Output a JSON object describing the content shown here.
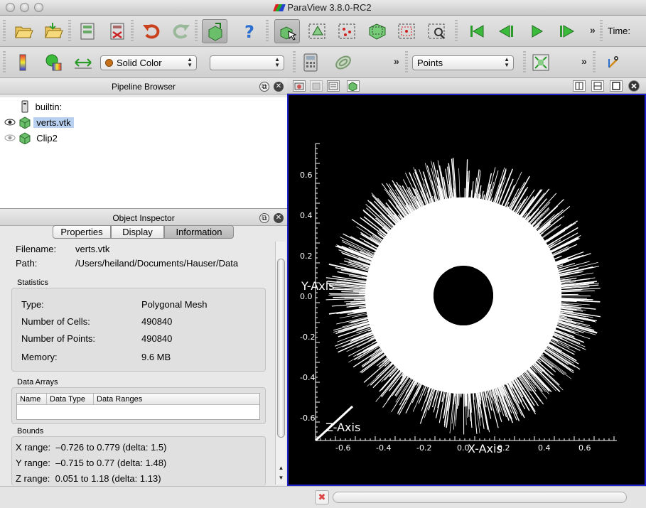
{
  "window": {
    "title": "ParaView 3.8.0-RC2"
  },
  "toolbar1": {
    "icons": [
      "open-icon",
      "open-recent-icon",
      "connect-icon",
      "disconnect-icon",
      "undo-icon",
      "redo-icon",
      "reset-session-icon",
      "help-icon",
      "interact-icon",
      "select-cells-icon",
      "select-points-icon",
      "select-frustum-cells-icon",
      "select-frustum-points-icon",
      "select-block-icon",
      "first-frame-icon",
      "previous-frame-icon",
      "play-icon",
      "next-frame-icon",
      "last-frame-icon"
    ],
    "time_label": "Time:",
    "overflow": "»"
  },
  "toolbar2": {
    "color_by": "Solid Color",
    "component": "",
    "representation": "Points",
    "overflow": "»"
  },
  "pipeline_browser": {
    "title": "Pipeline Browser",
    "items": [
      {
        "label": "builtin:",
        "icon": "server-icon"
      },
      {
        "label": "verts.vtk",
        "icon": "dataset-icon",
        "visible": true,
        "selected": true
      },
      {
        "label": "Clip2",
        "icon": "filter-icon",
        "visible": false
      }
    ]
  },
  "object_inspector": {
    "title": "Object Inspector",
    "tabs": [
      "Properties",
      "Display",
      "Information"
    ],
    "active_tab": "Information",
    "file": {
      "filename_label": "Filename:",
      "filename": "verts.vtk",
      "path_label": "Path:",
      "path": "/Users/heiland/Documents/Hauser/Data"
    },
    "statistics": {
      "title": "Statistics",
      "type_label": "Type:",
      "type": "Polygonal Mesh",
      "cells_label": "Number of Cells:",
      "cells": "490840",
      "points_label": "Number of Points:",
      "points": "490840",
      "memory_label": "Memory:",
      "memory": "9.6 MB"
    },
    "data_arrays": {
      "title": "Data Arrays",
      "columns": [
        "Name",
        "Data Type",
        "Data Ranges"
      ]
    },
    "bounds": {
      "title": "Bounds",
      "x": "X range:  –0.726 to 0.779 (delta: 1.5)",
      "y": "Y range:  –0.715 to 0.77 (delta: 1.48)",
      "z": "Z range:  0.051 to 1.18 (delta: 1.13)"
    }
  },
  "view": {
    "axis_y_label": "Y-Axis",
    "axis_x_label": "X-Axis",
    "axis_z_label": "Z-Axis",
    "y_ticks": [
      "0.6",
      "0.4",
      "0.2",
      "0.0",
      "-0.2",
      "-0.4",
      "-0.6"
    ],
    "x_ticks": [
      "-0.6",
      "-0.4",
      "-0.2",
      "0.0",
      "0.2",
      "0.4",
      "0.6"
    ],
    "background_color": "#000000",
    "points_color": "#ffffff",
    "active_border_color": "#2222cc"
  }
}
